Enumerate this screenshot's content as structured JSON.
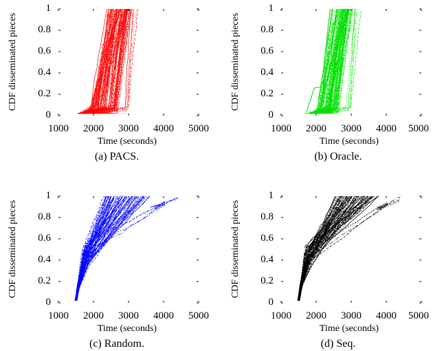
{
  "chart_data": [
    {
      "type": "line",
      "caption": "(a)  PACS.",
      "xlabel": "Time (seconds)",
      "ylabel": "CDF disseminated pieces",
      "xlim": [
        1000,
        5000
      ],
      "ylim": [
        0,
        1
      ],
      "xticks": [
        "1000",
        "2000",
        "3000",
        "4000",
        "5000"
      ],
      "yticks": [
        "0",
        "0.2",
        "0.4",
        "0.6",
        "0.8",
        "1"
      ],
      "color": "#ff0000",
      "series_count": 100,
      "summary": {
        "start_time_range": [
          1500,
          3000
        ],
        "completion_time_range": [
          2300,
          3200
        ],
        "outlier_completion_range": [
          2950,
          3200
        ]
      }
    },
    {
      "type": "line",
      "caption": "(b)  Oracle.",
      "xlabel": "Time (seconds)",
      "ylabel": "CDF disseminated pieces",
      "xlim": [
        1000,
        5000
      ],
      "ylim": [
        0,
        1
      ],
      "xticks": [
        "1000",
        "2000",
        "3000",
        "4000",
        "5000"
      ],
      "yticks": [
        "0",
        "0.2",
        "0.4",
        "0.6",
        "0.8",
        "1"
      ],
      "color": "#00e000",
      "series_count": 100,
      "summary": {
        "start_time_range": [
          1700,
          3000
        ],
        "completion_time_range": [
          2350,
          3100
        ],
        "early_plateau": {
          "x": [
            1950,
            2200
          ],
          "y": 0.26
        }
      }
    },
    {
      "type": "line",
      "caption": "(c)  Random.",
      "xlabel": "Time (seconds)",
      "ylabel": "CDF disseminated pieces",
      "xlim": [
        1000,
        5000
      ],
      "ylim": [
        0,
        1
      ],
      "xticks": [
        "1000",
        "2000",
        "3000",
        "4000",
        "5000"
      ],
      "yticks": [
        "0",
        "0.2",
        "0.4",
        "0.6",
        "0.8",
        "1"
      ],
      "color": "#0000ff",
      "series_count": 80,
      "summary": {
        "start_time": 1500,
        "completion_time_range": [
          2300,
          4400
        ],
        "slowest_completion": 4400
      }
    },
    {
      "type": "line",
      "caption": "(d)  Seq.",
      "xlabel": "Time (seconds)",
      "ylabel": "CDF disseminated pieces",
      "xlim": [
        1000,
        5000
      ],
      "ylim": [
        0,
        1
      ],
      "xticks": [
        "1000",
        "2000",
        "3000",
        "4000",
        "5000"
      ],
      "yticks": [
        "0",
        "0.2",
        "0.4",
        "0.6",
        "0.8",
        "1"
      ],
      "color": "#000000",
      "series_count": 80,
      "summary": {
        "start_time": 1500,
        "completion_time_range": [
          2600,
          4400
        ],
        "slowest_completion": 4400
      }
    }
  ]
}
